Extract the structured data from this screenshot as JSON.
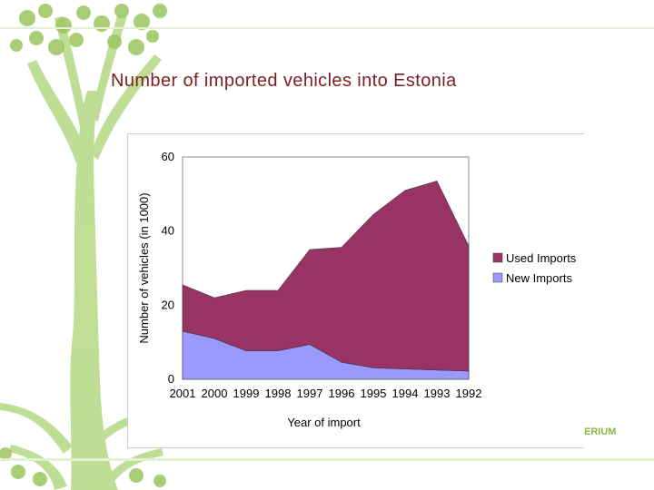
{
  "slide": {
    "title": "Number of imported vehicles into Estonia",
    "title_color": "#7b1e1e",
    "brand_fragment": "ERIUM",
    "brand_color": "#8bb84a",
    "decoration": "green-tree-illustration"
  },
  "chart_data": {
    "type": "area",
    "stacked": true,
    "title": "",
    "xlabel": "Year of import",
    "ylabel": "Number of vehicles (in 1000)",
    "categories": [
      "2001",
      "2000",
      "1999",
      "1998",
      "1997",
      "1996",
      "1995",
      "1994",
      "1993",
      "1992"
    ],
    "ylim": [
      0,
      60
    ],
    "yticks": [
      "0",
      "20",
      "40",
      "60"
    ],
    "grid": false,
    "legend_position": "right",
    "series": [
      {
        "name": "New Imports",
        "color": "#9999ff",
        "values": [
          13,
          11,
          7.7,
          7.7,
          9.4,
          4.6,
          3.1,
          2.8,
          2.5,
          2.2
        ]
      },
      {
        "name": "Used Imports",
        "color": "#993366",
        "values": [
          12.5,
          11,
          16.3,
          16.3,
          25.6,
          31,
          41.4,
          48.2,
          51,
          33.8
        ]
      }
    ]
  }
}
